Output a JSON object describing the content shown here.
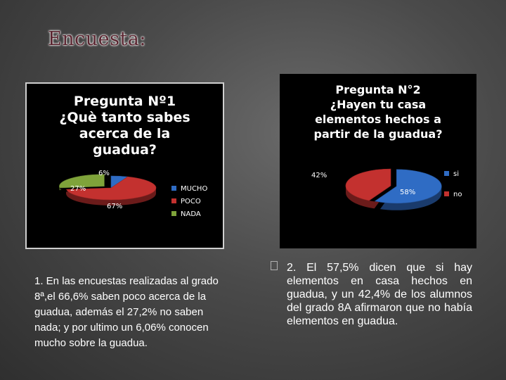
{
  "slide": {
    "title": "Encuesta:"
  },
  "chart_data": [
    {
      "type": "pie",
      "title_lines": [
        "Pregunta Nº1",
        "¿Què tanto sabes",
        "acerca de la",
        "guadua?"
      ],
      "categories": [
        "MUCHO",
        "POCO",
        "NADA"
      ],
      "values": [
        6,
        67,
        27
      ],
      "labels": [
        "6%",
        "67%",
        "27%"
      ],
      "colors": [
        "#2f6cc4",
        "#c3312f",
        "#7fa33a"
      ],
      "legend_position": "right"
    },
    {
      "type": "pie",
      "title_lines": [
        "Pregunta N°2",
        "¿Hayen tu casa",
        "elementos hechos a",
        "partir de la guadua?"
      ],
      "categories": [
        "si",
        "no"
      ],
      "values": [
        58,
        42
      ],
      "labels": [
        "58%",
        "42%"
      ],
      "colors": [
        "#2f6cc4",
        "#c3312f"
      ],
      "legend_position": "right"
    }
  ],
  "captions": {
    "left": "1. En las encuestas realizadas al grado 8ª,el 66,6% saben poco acerca de la guadua, además el 27,2% no saben nada; y por ultimo un 6,06% conocen mucho sobre la guadua.",
    "right": "2. El 57,5% dicen que si hay elementos en casa hechos en guadua, y un 42,4% de los alumnos del grado 8A afirmaron que no había elementos en guadua."
  }
}
